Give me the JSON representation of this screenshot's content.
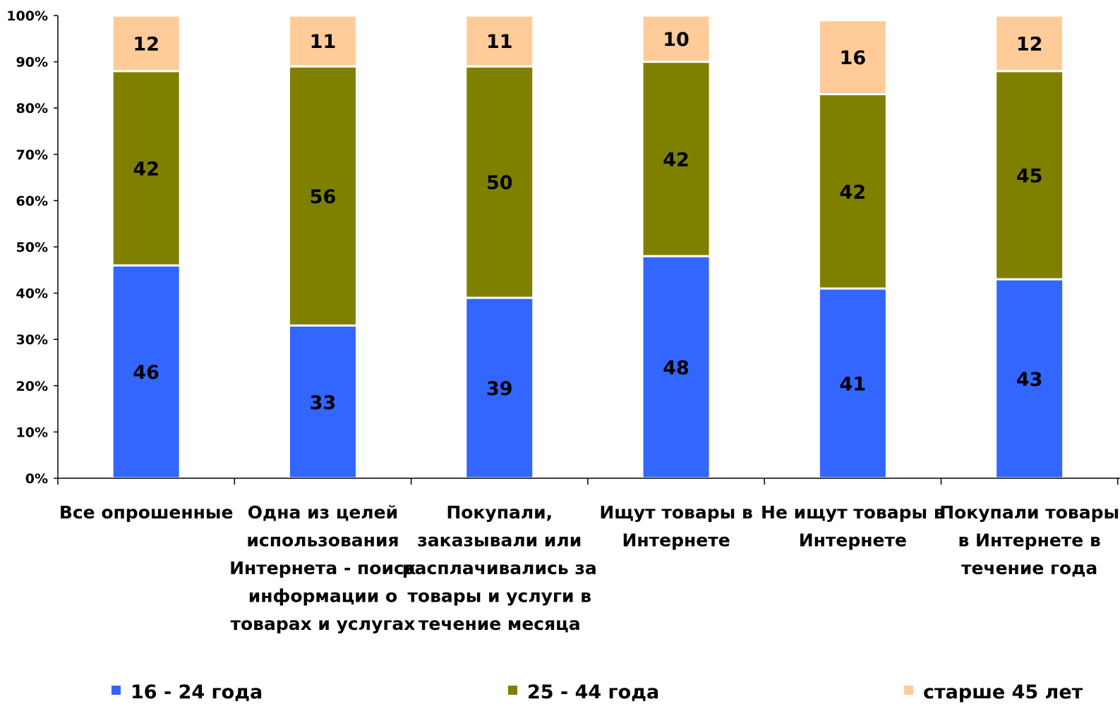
{
  "chart_data": {
    "type": "bar",
    "stacked": true,
    "title": "",
    "xlabel": "",
    "ylabel": "",
    "ylim": [
      0,
      100
    ],
    "y_ticks": [
      "0%",
      "10%",
      "20%",
      "30%",
      "40%",
      "50%",
      "60%",
      "70%",
      "80%",
      "90%",
      "100%"
    ],
    "grid": false,
    "legend_position": "bottom",
    "categories": [
      [
        "Все опрошенные"
      ],
      [
        "Одна из целей",
        "использования",
        "Интернета - поиск",
        "информации о",
        "товарах и услугах"
      ],
      [
        "Покупали,",
        "заказывали или",
        "расплачивались за",
        "товары и услуги в",
        "течение месяца"
      ],
      [
        "Ищут товары в",
        "Интернете"
      ],
      [
        "Не ищут товары в",
        "Интернете"
      ],
      [
        "Покупали товары",
        "в Интернете  в",
        "течение года"
      ]
    ],
    "series": [
      {
        "name": "16 - 24 года",
        "color": "#3366ff",
        "values": [
          46,
          33,
          39,
          48,
          41,
          43
        ]
      },
      {
        "name": "25 - 44 года",
        "color": "#808000",
        "values": [
          42,
          56,
          50,
          42,
          42,
          45
        ]
      },
      {
        "name": "старше 45 лет",
        "color": "#ffcc99",
        "values": [
          12,
          11,
          11,
          10,
          16,
          12
        ]
      }
    ]
  }
}
